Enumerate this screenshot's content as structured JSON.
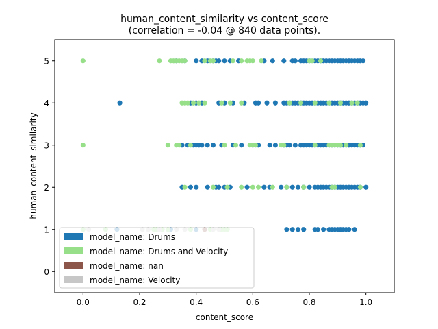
{
  "chart_data": {
    "type": "scatter",
    "title_line1": "human_content_similarity vs content_score",
    "title_line2": "(correlation = -0.04 @ 840 data points).",
    "xlabel": "content_score",
    "ylabel": "human_content_similarity",
    "xlim": [
      -0.1,
      1.1
    ],
    "ylim": [
      -0.5,
      5.5
    ],
    "xticks": [
      0.0,
      0.2,
      0.4,
      0.6,
      0.8,
      1.0
    ],
    "xtick_labels": [
      "0.0",
      "0.2",
      "0.4",
      "0.6",
      "0.8",
      "1.0"
    ],
    "yticks": [
      0,
      1,
      2,
      3,
      4,
      5
    ],
    "ytick_labels": [
      "0",
      "1",
      "2",
      "3",
      "4",
      "5"
    ],
    "grid": false,
    "legend_position": "lower-left",
    "series": [
      {
        "name": "model_name: Drums",
        "color": "#1f77b4",
        "points": [
          [
            0.13,
            4
          ],
          [
            0.33,
            5
          ],
          [
            0.36,
            5
          ],
          [
            0.4,
            5
          ],
          [
            0.42,
            5
          ],
          [
            0.44,
            5
          ],
          [
            0.46,
            5
          ],
          [
            0.47,
            5
          ],
          [
            0.48,
            5
          ],
          [
            0.5,
            5
          ],
          [
            0.52,
            5
          ],
          [
            0.55,
            5
          ],
          [
            0.64,
            5
          ],
          [
            0.67,
            5
          ],
          [
            0.71,
            5
          ],
          [
            0.74,
            5
          ],
          [
            0.75,
            5
          ],
          [
            0.77,
            5
          ],
          [
            0.78,
            5
          ],
          [
            0.79,
            5
          ],
          [
            0.8,
            5
          ],
          [
            0.82,
            5
          ],
          [
            0.83,
            5
          ],
          [
            0.84,
            5
          ],
          [
            0.85,
            5
          ],
          [
            0.86,
            5
          ],
          [
            0.87,
            5
          ],
          [
            0.88,
            5
          ],
          [
            0.89,
            5
          ],
          [
            0.9,
            5
          ],
          [
            0.91,
            5
          ],
          [
            0.92,
            5
          ],
          [
            0.93,
            5
          ],
          [
            0.94,
            5
          ],
          [
            0.95,
            5
          ],
          [
            0.96,
            5
          ],
          [
            0.97,
            5
          ],
          [
            0.98,
            5
          ],
          [
            0.99,
            5
          ],
          [
            0.38,
            4
          ],
          [
            0.4,
            4
          ],
          [
            0.42,
            4
          ],
          [
            0.48,
            4
          ],
          [
            0.5,
            4
          ],
          [
            0.53,
            4
          ],
          [
            0.57,
            4
          ],
          [
            0.61,
            4
          ],
          [
            0.62,
            4
          ],
          [
            0.65,
            4
          ],
          [
            0.68,
            4
          ],
          [
            0.71,
            4
          ],
          [
            0.72,
            4
          ],
          [
            0.73,
            4
          ],
          [
            0.74,
            4
          ],
          [
            0.75,
            4
          ],
          [
            0.76,
            4
          ],
          [
            0.77,
            4
          ],
          [
            0.78,
            4
          ],
          [
            0.79,
            4
          ],
          [
            0.8,
            4
          ],
          [
            0.81,
            4
          ],
          [
            0.82,
            4
          ],
          [
            0.83,
            4
          ],
          [
            0.84,
            4
          ],
          [
            0.85,
            4
          ],
          [
            0.86,
            4
          ],
          [
            0.87,
            4
          ],
          [
            0.88,
            4
          ],
          [
            0.89,
            4
          ],
          [
            0.9,
            4
          ],
          [
            0.91,
            4
          ],
          [
            0.92,
            4
          ],
          [
            0.93,
            4
          ],
          [
            0.94,
            4
          ],
          [
            0.95,
            4
          ],
          [
            0.96,
            4
          ],
          [
            0.97,
            4
          ],
          [
            0.98,
            4
          ],
          [
            0.99,
            4
          ],
          [
            1.0,
            4
          ],
          [
            0.35,
            3
          ],
          [
            0.37,
            3
          ],
          [
            0.39,
            3
          ],
          [
            0.4,
            3
          ],
          [
            0.41,
            3
          ],
          [
            0.42,
            3
          ],
          [
            0.44,
            3
          ],
          [
            0.46,
            3
          ],
          [
            0.49,
            3
          ],
          [
            0.53,
            3
          ],
          [
            0.56,
            3
          ],
          [
            0.6,
            3
          ],
          [
            0.62,
            3
          ],
          [
            0.66,
            3
          ],
          [
            0.68,
            3
          ],
          [
            0.71,
            3
          ],
          [
            0.72,
            3
          ],
          [
            0.73,
            3
          ],
          [
            0.75,
            3
          ],
          [
            0.77,
            3
          ],
          [
            0.78,
            3
          ],
          [
            0.79,
            3
          ],
          [
            0.8,
            3
          ],
          [
            0.81,
            3
          ],
          [
            0.82,
            3
          ],
          [
            0.83,
            3
          ],
          [
            0.84,
            3
          ],
          [
            0.85,
            3
          ],
          [
            0.86,
            3
          ],
          [
            0.87,
            3
          ],
          [
            0.88,
            3
          ],
          [
            0.89,
            3
          ],
          [
            0.9,
            3
          ],
          [
            0.91,
            3
          ],
          [
            0.92,
            3
          ],
          [
            0.93,
            3
          ],
          [
            0.94,
            3
          ],
          [
            0.95,
            3
          ],
          [
            0.96,
            3
          ],
          [
            0.97,
            3
          ],
          [
            0.98,
            3
          ],
          [
            0.99,
            3
          ],
          [
            0.35,
            2
          ],
          [
            0.38,
            2
          ],
          [
            0.4,
            2
          ],
          [
            0.44,
            2
          ],
          [
            0.47,
            2
          ],
          [
            0.48,
            2
          ],
          [
            0.5,
            2
          ],
          [
            0.52,
            2
          ],
          [
            0.58,
            2
          ],
          [
            0.64,
            2
          ],
          [
            0.66,
            2
          ],
          [
            0.7,
            2
          ],
          [
            0.72,
            2
          ],
          [
            0.74,
            2
          ],
          [
            0.76,
            2
          ],
          [
            0.78,
            2
          ],
          [
            0.8,
            2
          ],
          [
            0.82,
            2
          ],
          [
            0.83,
            2
          ],
          [
            0.84,
            2
          ],
          [
            0.85,
            2
          ],
          [
            0.86,
            2
          ],
          [
            0.87,
            2
          ],
          [
            0.88,
            2
          ],
          [
            0.89,
            2
          ],
          [
            0.9,
            2
          ],
          [
            0.91,
            2
          ],
          [
            0.92,
            2
          ],
          [
            0.93,
            2
          ],
          [
            0.94,
            2
          ],
          [
            0.95,
            2
          ],
          [
            0.96,
            2
          ],
          [
            0.97,
            2
          ],
          [
            0.98,
            2
          ],
          [
            1.0,
            2
          ],
          [
            0.12,
            1
          ],
          [
            0.31,
            1
          ],
          [
            0.4,
            1
          ],
          [
            0.72,
            1
          ],
          [
            0.74,
            1
          ],
          [
            0.76,
            1
          ],
          [
            0.78,
            1
          ],
          [
            0.82,
            1
          ],
          [
            0.83,
            1
          ],
          [
            0.85,
            1
          ],
          [
            0.87,
            1
          ],
          [
            0.88,
            1
          ],
          [
            0.89,
            1
          ],
          [
            0.9,
            1
          ],
          [
            0.91,
            1
          ],
          [
            0.92,
            1
          ],
          [
            0.93,
            1
          ],
          [
            0.94,
            1
          ],
          [
            0.96,
            1
          ]
        ]
      },
      {
        "name": "model_name: Drums and Velocity",
        "color": "#98df8a",
        "points": [
          [
            0.0,
            5
          ],
          [
            0.27,
            5
          ],
          [
            0.31,
            5
          ],
          [
            0.32,
            5
          ],
          [
            0.33,
            5
          ],
          [
            0.34,
            5
          ],
          [
            0.35,
            5
          ],
          [
            0.36,
            5
          ],
          [
            0.43,
            5
          ],
          [
            0.45,
            5
          ],
          [
            0.46,
            5
          ],
          [
            0.53,
            5
          ],
          [
            0.56,
            5
          ],
          [
            0.58,
            5
          ],
          [
            0.59,
            5
          ],
          [
            0.6,
            5
          ],
          [
            0.63,
            5
          ],
          [
            0.8,
            5
          ],
          [
            0.81,
            5
          ],
          [
            0.84,
            5
          ],
          [
            0.35,
            4
          ],
          [
            0.36,
            4
          ],
          [
            0.37,
            4
          ],
          [
            0.39,
            4
          ],
          [
            0.41,
            4
          ],
          [
            0.43,
            4
          ],
          [
            0.49,
            4
          ],
          [
            0.52,
            4
          ],
          [
            0.56,
            4
          ],
          [
            0.73,
            4
          ],
          [
            0.77,
            4
          ],
          [
            0.82,
            4
          ],
          [
            0.87,
            4
          ],
          [
            0.91,
            4
          ],
          [
            0.95,
            4
          ],
          [
            0.97,
            4
          ],
          [
            0.0,
            3
          ],
          [
            0.3,
            3
          ],
          [
            0.33,
            3
          ],
          [
            0.34,
            3
          ],
          [
            0.38,
            3
          ],
          [
            0.5,
            3
          ],
          [
            0.54,
            3
          ],
          [
            0.59,
            3
          ],
          [
            0.6,
            3
          ],
          [
            0.61,
            3
          ],
          [
            0.7,
            3
          ],
          [
            0.71,
            3
          ],
          [
            0.82,
            3
          ],
          [
            0.87,
            3
          ],
          [
            0.88,
            3
          ],
          [
            0.89,
            3
          ],
          [
            0.9,
            3
          ],
          [
            0.91,
            3
          ],
          [
            0.93,
            3
          ],
          [
            0.98,
            3
          ],
          [
            0.36,
            2
          ],
          [
            0.46,
            2
          ],
          [
            0.51,
            2
          ],
          [
            0.56,
            2
          ],
          [
            0.6,
            2
          ],
          [
            0.62,
            2
          ],
          [
            0.67,
            2
          ],
          [
            0.72,
            2
          ],
          [
            0.78,
            2
          ],
          [
            0.88,
            2
          ],
          [
            0.89,
            2
          ],
          [
            0.98,
            2
          ],
          [
            0.0,
            1
          ],
          [
            0.08,
            1
          ],
          [
            0.25,
            1
          ],
          [
            0.26,
            1
          ],
          [
            0.28,
            1
          ],
          [
            0.3,
            1
          ],
          [
            0.38,
            1
          ],
          [
            0.45,
            1
          ],
          [
            0.49,
            1
          ],
          [
            0.5,
            1
          ],
          [
            0.51,
            1
          ]
        ]
      },
      {
        "name": "model_name: nan",
        "color": "#8c564b",
        "points": [
          [
            0.43,
            1
          ]
        ]
      },
      {
        "name": "model_name: Velocity",
        "color": "#c7c7c7",
        "points": [
          [
            0.02,
            1
          ],
          [
            0.21,
            1
          ],
          [
            0.23,
            1
          ],
          [
            0.27,
            1
          ],
          [
            0.33,
            1
          ],
          [
            0.36,
            1
          ],
          [
            0.46,
            1
          ],
          [
            0.48,
            1
          ]
        ]
      }
    ]
  }
}
